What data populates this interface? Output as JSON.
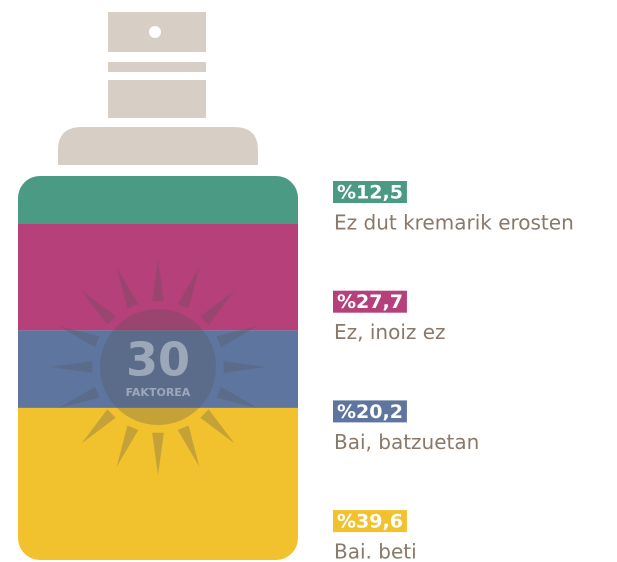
{
  "chart_data": {
    "type": "stacked-bar",
    "categories": [
      "Ez dut kremarik erosten",
      "Ez, inoiz ez",
      "Bai, batzuetan",
      "Bai. beti"
    ],
    "values": [
      12.5,
      27.7,
      20.2,
      39.6
    ],
    "value_labels": [
      "%12,5",
      "%27,7",
      "%20,2",
      "%39,6"
    ],
    "colors": [
      "#4a9a84",
      "#b5407a",
      "#5e75a0",
      "#f2c12e"
    ],
    "emblem": {
      "number": "30",
      "label": "FAKTOREA"
    }
  }
}
